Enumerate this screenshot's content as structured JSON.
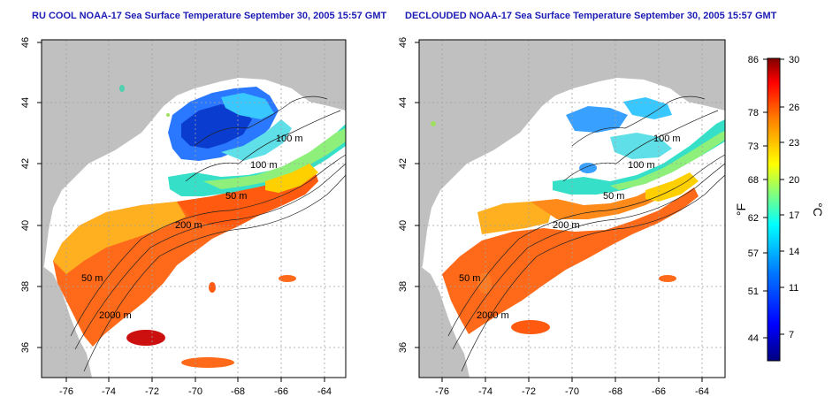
{
  "panels": [
    {
      "title": "RU COOL NOAA-17 Sea Surface Temperature September 30, 2005 15:57 GMT",
      "x_labels": [
        "-76",
        "-74",
        "-72",
        "-70",
        "-68",
        "-66",
        "-64"
      ],
      "y_labels": [
        "46",
        "44",
        "42",
        "40",
        "38",
        "36"
      ],
      "contour_labels": [
        "100 m",
        "100 m",
        "50 m",
        "200 m",
        "50 m",
        "2000 m"
      ]
    },
    {
      "title": "DECLOUDED NOAA-17 Sea Surface Temperature September 30, 2005 15:57 GMT",
      "x_labels": [
        "-76",
        "-74",
        "-72",
        "-70",
        "-68",
        "-66",
        "-64"
      ],
      "y_labels": [
        "46",
        "44",
        "42",
        "40",
        "38",
        "36"
      ],
      "contour_labels": [
        "100 m",
        "100 m",
        "50 m",
        "200 m",
        "50 m",
        "2000 m"
      ]
    }
  ],
  "colorbar": {
    "f_labels": [
      "86",
      "78",
      "73",
      "68",
      "62",
      "57",
      "51",
      "44"
    ],
    "c_labels": [
      "30",
      "26",
      "23",
      "20",
      "17",
      "14",
      "11",
      "7"
    ],
    "f_unit": "°F",
    "c_unit": "°C",
    "colors": [
      "#00007f",
      "#0000ff",
      "#007fff",
      "#00ffff",
      "#7fff7f",
      "#ffff00",
      "#ff7f00",
      "#ff0000",
      "#7f0000"
    ]
  },
  "colors": {
    "land": "#c0c0c0",
    "ocean": "#ffffff",
    "title": "#1c1cb4"
  }
}
